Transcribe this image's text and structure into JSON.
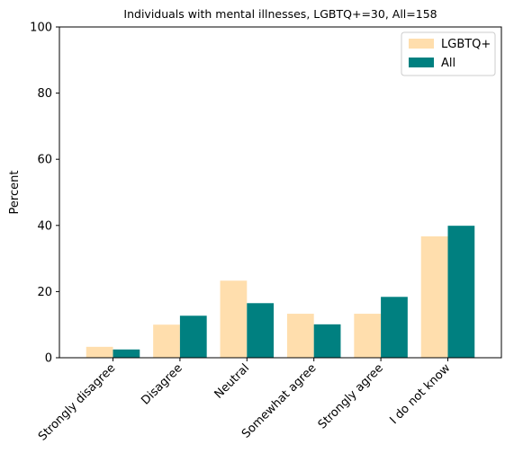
{
  "chart_data": {
    "type": "bar",
    "title": "Individuals with mental illnesses, LGBTQ+=30, All=158",
    "xlabel": "",
    "ylabel": "Percent",
    "ylim": [
      0,
      100
    ],
    "yticks": [
      0,
      20,
      40,
      60,
      80,
      100
    ],
    "categories": [
      "Strongly disagree",
      "Disagree",
      "Neutral",
      "Somewhat agree",
      "Strongly agree",
      "I do not know"
    ],
    "series": [
      {
        "name": "LGBTQ+",
        "color": "#FFDEAD",
        "values": [
          3.3,
          10.0,
          23.3,
          13.3,
          13.3,
          36.7
        ]
      },
      {
        "name": "All",
        "color": "#008080",
        "values": [
          2.5,
          12.7,
          16.5,
          10.1,
          18.4,
          39.9
        ]
      }
    ],
    "grid": false,
    "legend": "top-right"
  }
}
